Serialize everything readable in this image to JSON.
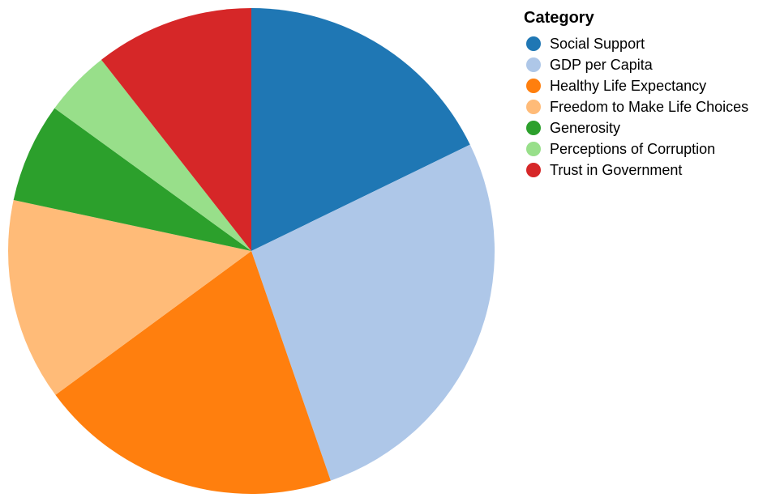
{
  "chart_data": {
    "type": "pie",
    "legend": {
      "title": "Category",
      "placement": "right"
    },
    "categories": [
      "Social Support",
      "GDP per Capita",
      "Healthy Life Expectancy",
      "Freedom to Make Life Choices",
      "Generosity",
      "Perceptions of Corruption",
      "Trust in Government"
    ],
    "values": [
      18.5,
      28.0,
      21.0,
      14.0,
      6.9,
      4.6,
      11.0
    ],
    "colors": [
      "#1f77b4",
      "#aec7e8",
      "#ff7f0e",
      "#ffbb78",
      "#2ca02c",
      "#98df8a",
      "#d62728"
    ],
    "start_angle": "12 o'clock",
    "direction": "clockwise"
  }
}
